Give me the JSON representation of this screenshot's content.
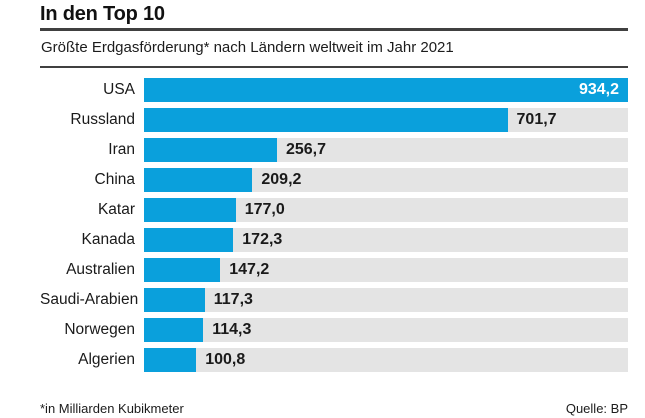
{
  "header": {
    "title": "In den Top 10",
    "subtitle": "Größte Erdgasförderung* nach Ländern weltweit im Jahr 2021"
  },
  "footer": {
    "note": "*in Milliarden Kubikmeter",
    "source": "Quelle: BP"
  },
  "colors": {
    "bar": "#0aa0dc",
    "track": "#e4e4e4",
    "value_inside": "#ffffff",
    "value_outside": "#1a1a1a",
    "rule": "#404040"
  },
  "chart_data": {
    "type": "bar",
    "orientation": "horizontal",
    "title": "In den Top 10",
    "subtitle": "Größte Erdgasförderung* nach Ländern weltweit im Jahr 2021",
    "unit_note": "*in Milliarden Kubikmeter",
    "source": "Quelle: BP",
    "categories": [
      "USA",
      "Russland",
      "Iran",
      "China",
      "Katar",
      "Kanada",
      "Australien",
      "Saudi-Arabien",
      "Norwegen",
      "Algerien"
    ],
    "values": [
      934.2,
      701.7,
      256.7,
      209.2,
      177.0,
      172.3,
      147.2,
      117.3,
      114.3,
      100.8
    ],
    "value_labels": [
      "934,2",
      "701,7",
      "256,7",
      "209,2",
      "177,0",
      "172,3",
      "147,2",
      "117,3",
      "114,3",
      "100,8"
    ],
    "value_label_inside": [
      true,
      false,
      false,
      false,
      false,
      false,
      false,
      false,
      false,
      false
    ],
    "xlim": [
      0,
      934.2
    ],
    "grid": false,
    "legend": false
  }
}
